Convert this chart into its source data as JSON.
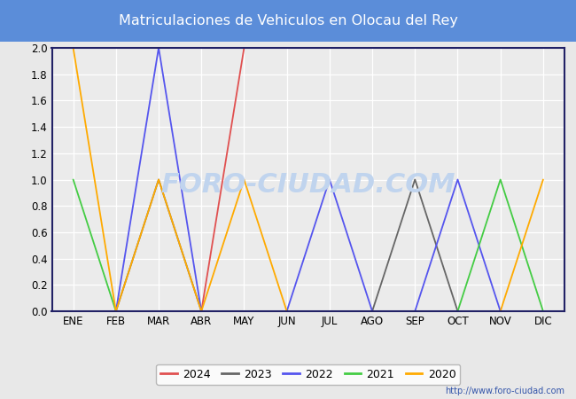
{
  "title": "Matriculaciones de Vehiculos en Olocau del Rey",
  "title_bg_color": "#5b8dd9",
  "title_text_color": "#ffffff",
  "months": [
    "ENE",
    "FEB",
    "MAR",
    "ABR",
    "MAY",
    "JUN",
    "JUL",
    "AGO",
    "SEP",
    "OCT",
    "NOV",
    "DIC"
  ],
  "series": {
    "2024": {
      "color": "#e05050",
      "data": [
        null,
        null,
        null,
        0,
        2,
        null,
        null,
        null,
        null,
        null,
        null,
        null
      ]
    },
    "2023": {
      "color": "#666666",
      "data": [
        0,
        0,
        1,
        0,
        0,
        0,
        0,
        0,
        1,
        0,
        0,
        0
      ]
    },
    "2022": {
      "color": "#5555ee",
      "data": [
        0,
        0,
        2,
        0,
        0,
        0,
        1,
        0,
        0,
        1,
        0,
        0
      ]
    },
    "2021": {
      "color": "#44cc44",
      "data": [
        1,
        0,
        0,
        0,
        0,
        0,
        0,
        0,
        0,
        0,
        1,
        0
      ]
    },
    "2020": {
      "color": "#ffaa00",
      "data": [
        2,
        0,
        1,
        0,
        1,
        0,
        0,
        0,
        0,
        0,
        0,
        1
      ]
    }
  },
  "ylim": [
    0.0,
    2.0
  ],
  "yticks": [
    0.0,
    0.2,
    0.4,
    0.6,
    0.8,
    1.0,
    1.2,
    1.4,
    1.6,
    1.8,
    2.0
  ],
  "outer_bg_color": "#e8e8e8",
  "plot_bg_color": "#ebebeb",
  "grid_color": "#ffffff",
  "border_color": "#222266",
  "watermark_text": "FORO-CIUDAD.COM",
  "watermark_color": "#c0d4ee",
  "url": "http://www.foro-ciudad.com",
  "legend_years": [
    "2024",
    "2023",
    "2022",
    "2021",
    "2020"
  ]
}
